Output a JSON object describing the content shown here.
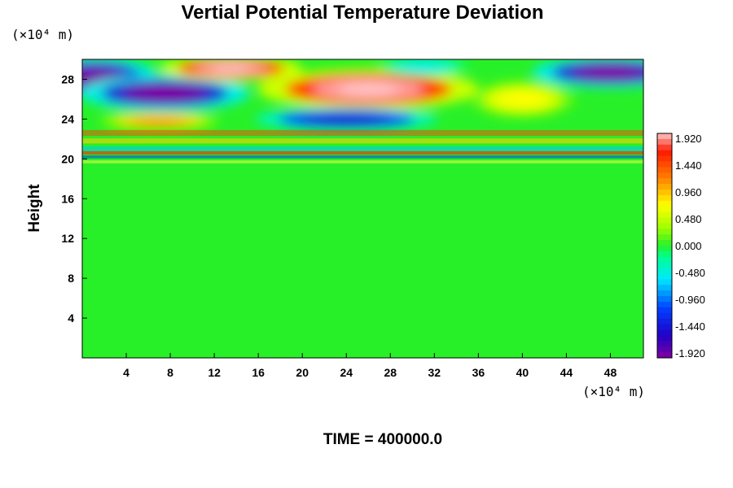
{
  "chart_data": {
    "type": "heatmap",
    "title": "Vertial Potential Temperature Deviation",
    "ylabel": "Height",
    "y_unit": "(×10⁴ m)",
    "x_unit": "(×10⁴ m)",
    "annotation": "TIME = 400000.0",
    "xlim": [
      0,
      51
    ],
    "ylim": [
      0,
      30
    ],
    "x_ticks": [
      "4",
      "8",
      "12",
      "16",
      "20",
      "24",
      "28",
      "32",
      "36",
      "40",
      "44",
      "48"
    ],
    "y_ticks": [
      "4",
      "8",
      "12",
      "16",
      "20",
      "24",
      "28"
    ],
    "colorbar": {
      "range": [
        -1.92,
        1.92
      ],
      "labels": [
        "1.920",
        "1.440",
        "0.960",
        "0.480",
        "0.000",
        "-0.480",
        "-0.960",
        "-1.440",
        "-1.920"
      ]
    },
    "features": [
      {
        "x": 1,
        "y": 28.2,
        "value": -1.9
      },
      {
        "x": 7.5,
        "y": 26.6,
        "value": -1.95
      },
      {
        "x": 13.5,
        "y": 29.1,
        "value": 1.95
      },
      {
        "x": 26,
        "y": 27,
        "value": 1.95
      },
      {
        "x": 48,
        "y": 28.7,
        "value": -1.95
      },
      {
        "x": 24,
        "y": 24,
        "value": -1.5
      },
      {
        "x": 7,
        "y": 23.8,
        "value": 1.1
      },
      {
        "x": 31,
        "y": 29.3,
        "value": -0.5
      },
      {
        "x": 40,
        "y": 26,
        "value": 0.7
      }
    ],
    "grid": false
  }
}
